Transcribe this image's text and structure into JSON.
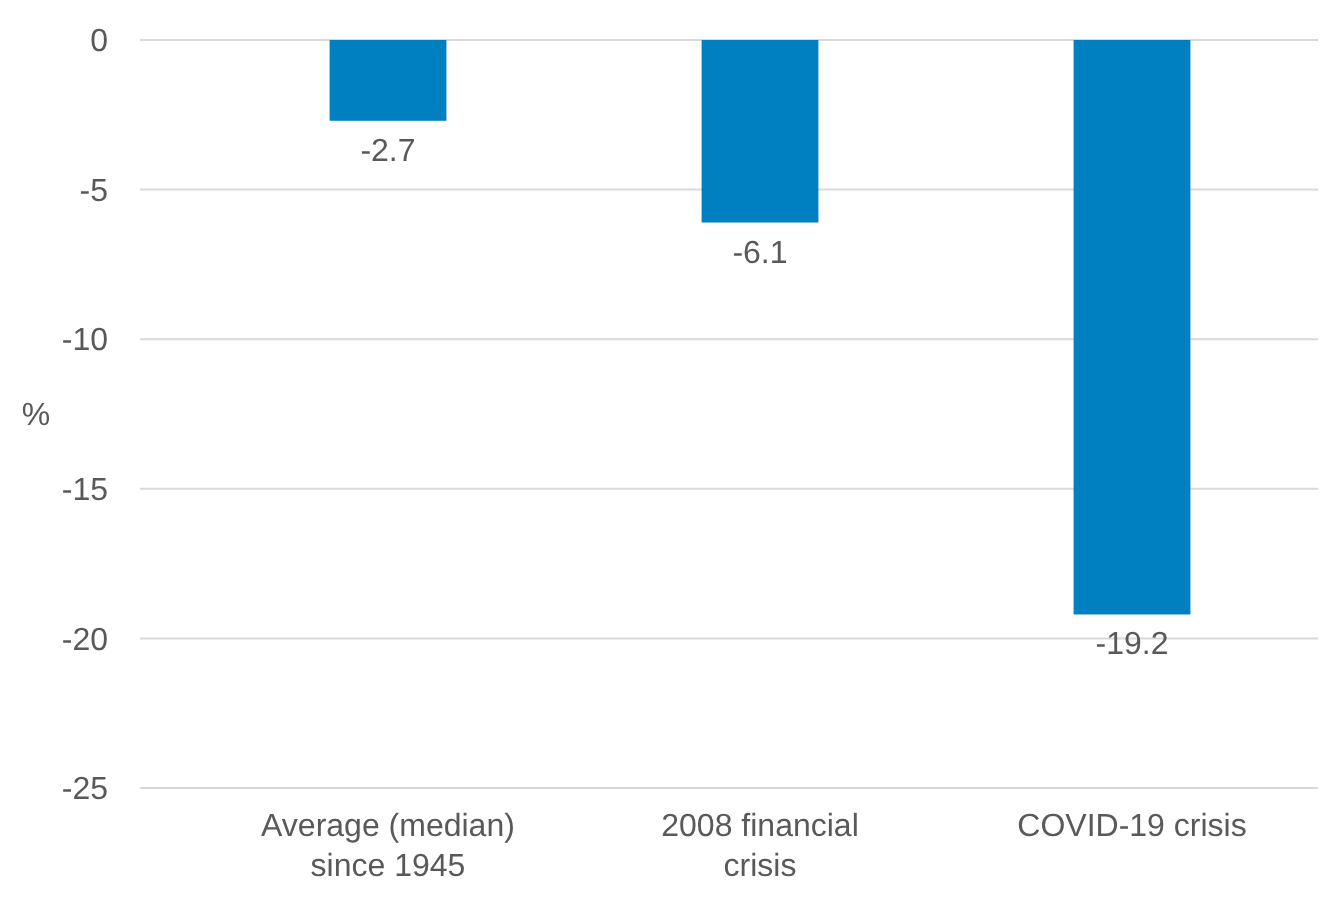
{
  "chart_data": {
    "type": "bar",
    "ylabel": "%",
    "categories": [
      "Average (median) since 1945",
      "2008 financial crisis",
      "COVID-19 crisis"
    ],
    "series": [
      {
        "color": "#0080c0",
        "values": [
          -2.7,
          -6.1,
          -19.2
        ]
      }
    ],
    "ylim": [
      -25,
      0
    ],
    "yticks": [
      0,
      -5,
      -10,
      -15,
      -20,
      -25
    ],
    "grid": "y",
    "data_labels": true
  }
}
